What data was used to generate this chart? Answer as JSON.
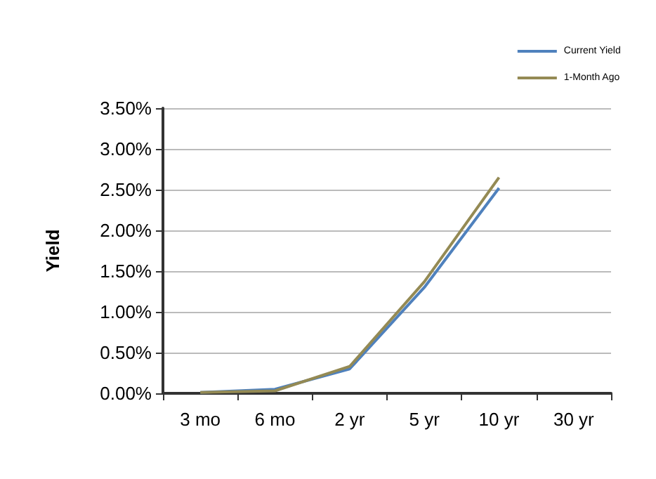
{
  "chart_data": {
    "type": "line",
    "ylabel": "Yield",
    "categories": [
      "3 mo",
      "6 mo",
      "2 yr",
      "5 yr",
      "10 yr",
      "30 yr"
    ],
    "series": [
      {
        "name": "Current Yield",
        "color": "#4f81bd",
        "values": [
          0.01,
          0.05,
          0.3,
          1.3,
          2.52,
          null
        ]
      },
      {
        "name": "1-Month Ago",
        "color": "#948a54",
        "values": [
          0.01,
          0.03,
          0.33,
          1.37,
          2.65,
          null
        ]
      }
    ],
    "ylim": [
      0,
      3.5
    ],
    "yticks": [
      {
        "value": 0,
        "label": "0.00%"
      },
      {
        "value": 0.5,
        "label": "0.50%"
      },
      {
        "value": 1,
        "label": "1.00%"
      },
      {
        "value": 1.5,
        "label": "1.50%"
      },
      {
        "value": 2,
        "label": "2.00%"
      },
      {
        "value": 2.5,
        "label": "2.50%"
      },
      {
        "value": 3,
        "label": "3.00%"
      },
      {
        "value": 3.5,
        "label": "3.50%"
      }
    ],
    "grid": "y",
    "legend": "top right",
    "marker": "none",
    "line_style": "solid"
  }
}
